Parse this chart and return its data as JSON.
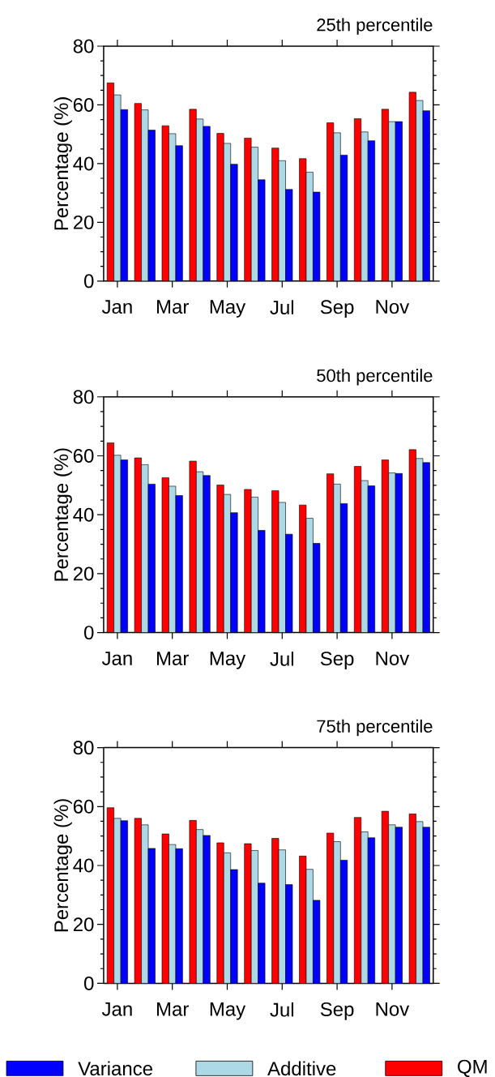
{
  "chart_data": [
    {
      "type": "bar",
      "title": "25th percentile",
      "ylabel": "Percentage (%)",
      "categories": [
        "Jan",
        null,
        "Mar",
        null,
        "May",
        null,
        "Jul",
        null,
        "Sep",
        null,
        "Nov",
        null
      ],
      "ylim": [
        0,
        80
      ],
      "yticks": [
        0,
        20,
        40,
        60,
        80
      ],
      "series": [
        {
          "color": "#ff0000",
          "values": [
            67.5,
            60.5,
            52.9,
            58.5,
            50.3,
            48.7,
            45.3,
            41.7,
            53.9,
            55.3,
            58.5,
            64.3
          ]
        },
        {
          "color": "#add8e6",
          "values": [
            63.4,
            58.3,
            50.2,
            55.2,
            46.9,
            45.6,
            41.0,
            37.1,
            50.5,
            50.8,
            54.3,
            61.5
          ]
        },
        {
          "color": "#0000ff",
          "values": [
            58.4,
            51.4,
            46.1,
            52.7,
            39.8,
            34.5,
            31.2,
            30.3,
            42.9,
            47.8,
            54.3,
            58.0
          ]
        }
      ]
    },
    {
      "type": "bar",
      "title": "50th percentile",
      "ylabel": "Percentage (%)",
      "categories": [
        "Jan",
        null,
        "Mar",
        null,
        "May",
        null,
        "Jul",
        null,
        "Sep",
        null,
        "Nov",
        null
      ],
      "ylim": [
        0,
        80
      ],
      "yticks": [
        0,
        20,
        40,
        60,
        80
      ],
      "series": [
        {
          "color": "#ff0000",
          "values": [
            64.4,
            59.3,
            52.6,
            58.2,
            50.1,
            48.6,
            48.2,
            43.3,
            53.9,
            56.4,
            58.6,
            62.1
          ]
        },
        {
          "color": "#add8e6",
          "values": [
            60.2,
            57.0,
            49.7,
            54.6,
            46.9,
            46.0,
            44.2,
            38.8,
            50.4,
            51.6,
            54.2,
            59.1
          ]
        },
        {
          "color": "#0000ff",
          "values": [
            58.6,
            50.4,
            46.5,
            53.3,
            40.7,
            34.7,
            33.4,
            30.3,
            43.8,
            49.8,
            54.0,
            57.7
          ]
        }
      ]
    },
    {
      "type": "bar",
      "title": "75th percentile",
      "ylabel": "Percentage (%)",
      "categories": [
        "Jan",
        null,
        "Mar",
        null,
        "May",
        null,
        "Jul",
        null,
        "Sep",
        null,
        "Nov",
        null
      ],
      "ylim": [
        0,
        80
      ],
      "yticks": [
        0,
        20,
        40,
        60,
        80
      ],
      "legend": "bottom",
      "series": [
        {
          "name": "QM",
          "color": "#ff0000",
          "values": [
            59.6,
            56.0,
            50.7,
            55.3,
            47.7,
            47.4,
            49.2,
            43.2,
            51.0,
            56.3,
            58.4,
            57.5
          ]
        },
        {
          "name": "Additive",
          "color": "#add8e6",
          "values": [
            56.0,
            53.8,
            47.1,
            52.2,
            44.3,
            45.1,
            45.3,
            38.7,
            48.1,
            51.4,
            53.8,
            54.9
          ]
        },
        {
          "name": "Variance",
          "color": "#0000ff",
          "values": [
            55.2,
            45.8,
            45.7,
            50.2,
            38.6,
            34.0,
            33.5,
            28.2,
            41.8,
            49.4,
            53.0,
            53.0
          ]
        }
      ]
    }
  ]
}
